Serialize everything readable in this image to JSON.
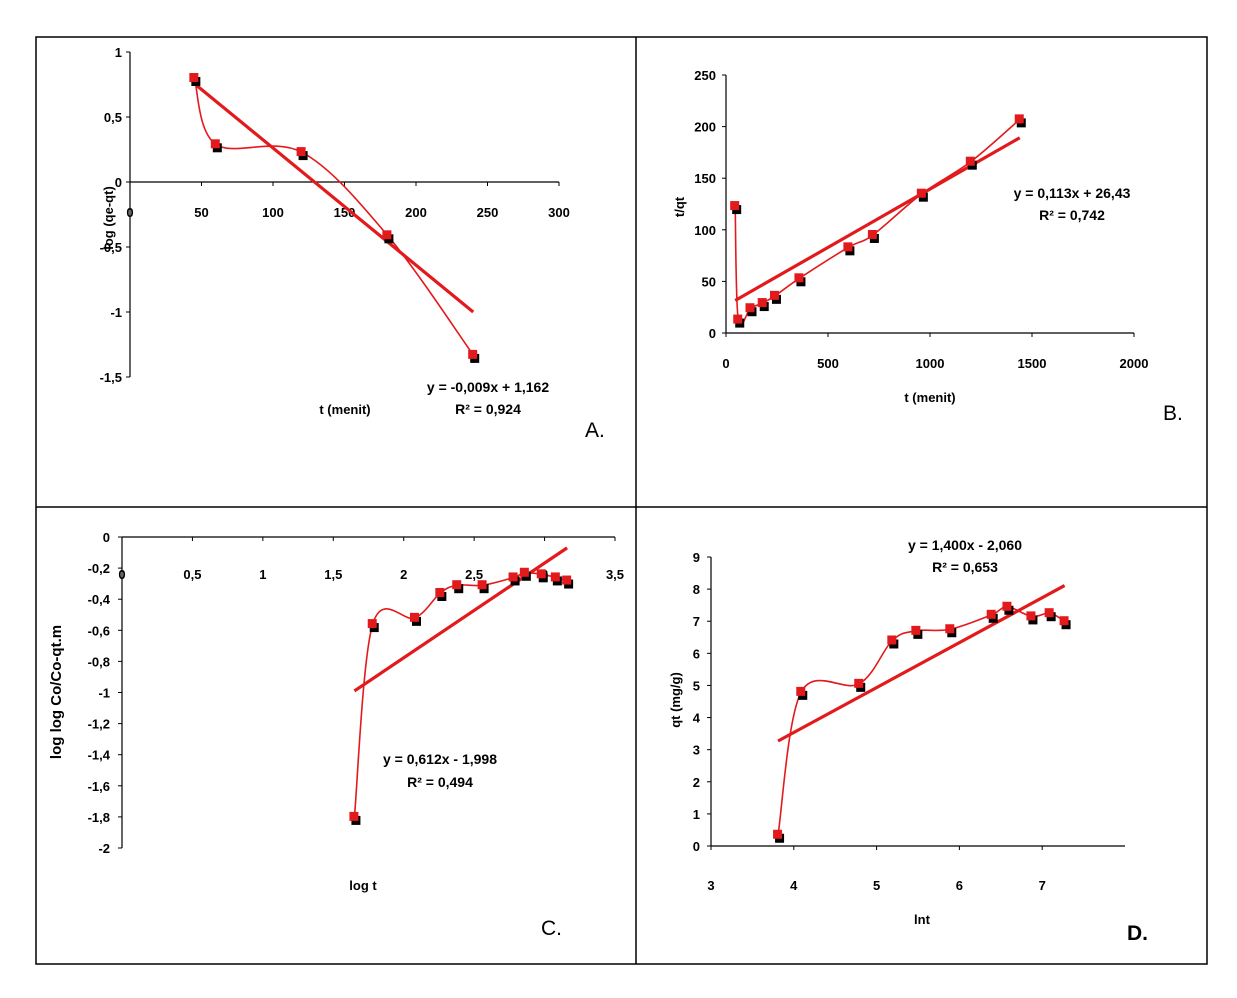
{
  "chart_data": [
    {
      "type": "scatter",
      "panel_label": "A.",
      "title": "",
      "xlabel": "t (menit)",
      "ylabel": "log (qe-qt)",
      "xlim": [
        0,
        300
      ],
      "ylim": [
        -1.5,
        1
      ],
      "x_ticks": [
        "0",
        "50",
        "100",
        "150",
        "200",
        "250",
        "300"
      ],
      "y_ticks": [
        "1",
        "0,5",
        "0",
        "-0,5",
        "-1",
        "-1,5"
      ],
      "series": [
        {
          "role": "points",
          "x": [
            45,
            60,
            120,
            180,
            240
          ],
          "y": [
            0.8,
            0.29,
            0.23,
            -0.41,
            -1.33
          ]
        }
      ],
      "trendline": {
        "x": [
          45,
          240
        ],
        "y": [
          0.757,
          -1.0
        ],
        "equation": "y = -0,009x + 1,162",
        "r2": "R² = 0,924"
      },
      "colors": {
        "points": "#e31a1c",
        "shadow": "#000000",
        "line": "#e31a1c"
      }
    },
    {
      "type": "scatter",
      "panel_label": "B.",
      "title": "",
      "xlabel": "t (menit)",
      "ylabel": "t/qt",
      "xlim": [
        0,
        2000
      ],
      "ylim": [
        0,
        250
      ],
      "x_ticks": [
        "0",
        "500",
        "1000",
        "1500",
        "2000"
      ],
      "y_ticks": [
        "250",
        "200",
        "150",
        "100",
        "50",
        "0"
      ],
      "series": [
        {
          "role": "points",
          "x": [
            45,
            60,
            120,
            180,
            240,
            360,
            600,
            720,
            960,
            1200,
            1440
          ],
          "y": [
            123,
            13,
            24,
            29,
            36,
            53,
            83,
            95,
            135,
            166,
            207
          ]
        }
      ],
      "trendline": {
        "x": [
          45,
          1440
        ],
        "y": [
          31.5,
          189.2
        ],
        "equation": "y = 0,113x + 26,43",
        "r2": "R² = 0,742"
      },
      "colors": {
        "points": "#e31a1c",
        "shadow": "#000000",
        "line": "#e31a1c"
      }
    },
    {
      "type": "scatter",
      "panel_label": "C.",
      "title": "",
      "xlabel": "log t",
      "ylabel": "log log Co/Co-qt.m",
      "xlim": [
        0,
        3.5
      ],
      "ylim": [
        -2,
        0
      ],
      "x_ticks": [
        "0",
        "0,5",
        "1",
        "1,5",
        "2",
        "2,5",
        "3",
        "3,5"
      ],
      "y_ticks": [
        "0",
        "-0,2",
        "-0,4",
        "-0,6",
        "-0,8",
        "-1",
        "-1,2",
        "-1,4",
        "-1,6",
        "-1,8",
        "-2"
      ],
      "series": [
        {
          "role": "points",
          "x": [
            1.65,
            1.78,
            2.08,
            2.26,
            2.38,
            2.56,
            2.78,
            2.86,
            2.98,
            3.08,
            3.16
          ],
          "y": [
            -1.8,
            -0.56,
            -0.52,
            -0.36,
            -0.31,
            -0.31,
            -0.26,
            -0.23,
            -0.24,
            -0.26,
            -0.28
          ]
        }
      ],
      "trendline": {
        "x": [
          1.65,
          3.16
        ],
        "y": [
          -0.99,
          -0.07
        ],
        "equation": "y = 0,612x - 1,998",
        "r2": "R² = 0,494"
      },
      "colors": {
        "points": "#e31a1c",
        "shadow": "#000000",
        "line": "#e31a1c"
      }
    },
    {
      "type": "scatter",
      "panel_label": "D.",
      "title": "",
      "xlabel": "lnt",
      "ylabel": "qt (mg/g)",
      "xlim": [
        3,
        8
      ],
      "ylim": [
        0,
        9
      ],
      "x_ticks": [
        "3",
        "4",
        "5",
        "6",
        "7"
      ],
      "y_ticks": [
        "9",
        "8",
        "7",
        "6",
        "5",
        "4",
        "3",
        "2",
        "1",
        "0"
      ],
      "series": [
        {
          "role": "points",
          "x": [
            3.81,
            4.09,
            4.79,
            5.19,
            5.48,
            5.89,
            6.39,
            6.58,
            6.87,
            7.09,
            7.27
          ],
          "y": [
            0.35,
            4.8,
            5.05,
            6.4,
            6.7,
            6.75,
            7.2,
            7.45,
            7.15,
            7.25,
            7.0
          ]
        }
      ],
      "trendline": {
        "x": [
          3.81,
          7.27
        ],
        "y": [
          3.27,
          8.11
        ],
        "equation": "y = 1,400x - 2,060",
        "r2": "R² = 0,653"
      },
      "colors": {
        "points": "#e31a1c",
        "shadow": "#000000",
        "line": "#e31a1c"
      }
    }
  ]
}
